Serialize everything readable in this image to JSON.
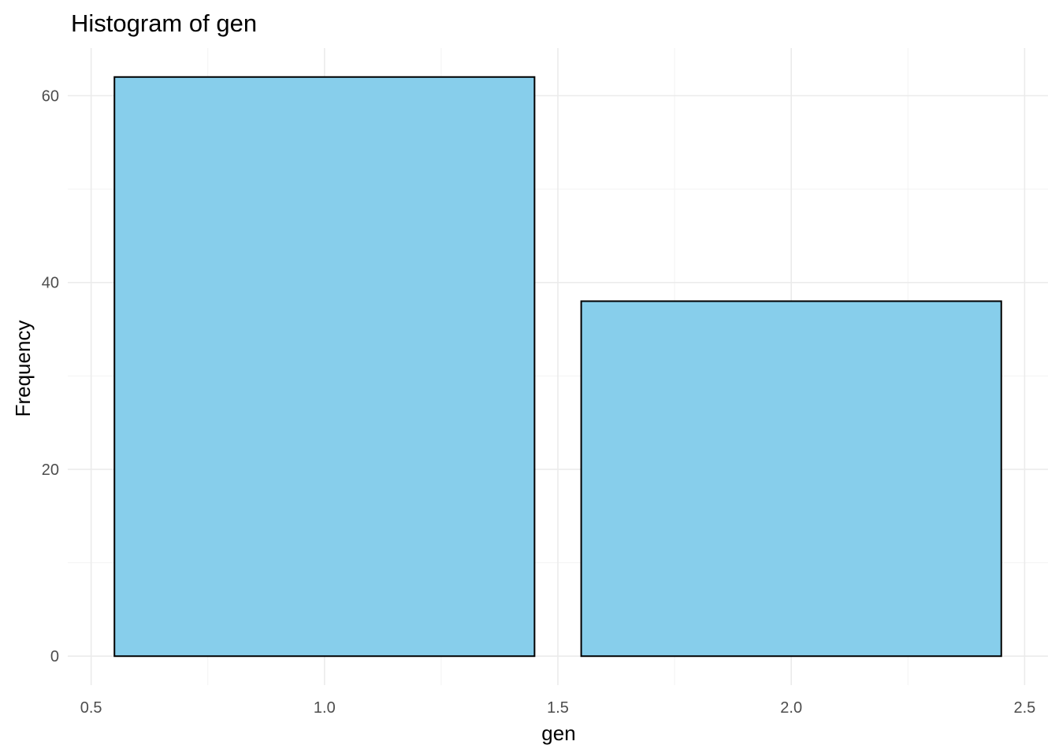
{
  "chart_data": {
    "type": "bar",
    "title": "Histogram of gen",
    "xlabel": "gen",
    "ylabel": "Frequency",
    "bins": [
      {
        "x_start": 0.55,
        "x_end": 1.45,
        "count": 62
      },
      {
        "x_start": 1.55,
        "x_end": 2.45,
        "count": 38
      }
    ],
    "xlim": [
      0.45,
      2.55
    ],
    "ylim": [
      -3.1,
      65.1
    ],
    "x_ticks": [
      0.5,
      1.0,
      1.5,
      2.0,
      2.5
    ],
    "x_tick_labels": [
      "0.5",
      "1.0",
      "1.5",
      "2.0",
      "2.5"
    ],
    "x_minor_ticks": [
      0.75,
      1.25,
      1.75,
      2.25
    ],
    "y_ticks": [
      0,
      20,
      40,
      60
    ],
    "y_tick_labels": [
      "0",
      "20",
      "40",
      "60"
    ],
    "y_minor_ticks": [
      10,
      30,
      50
    ],
    "grid": true,
    "legend": "none",
    "colors": {
      "bar_fill": "#87CEEB",
      "bar_outline": "#000000"
    }
  }
}
